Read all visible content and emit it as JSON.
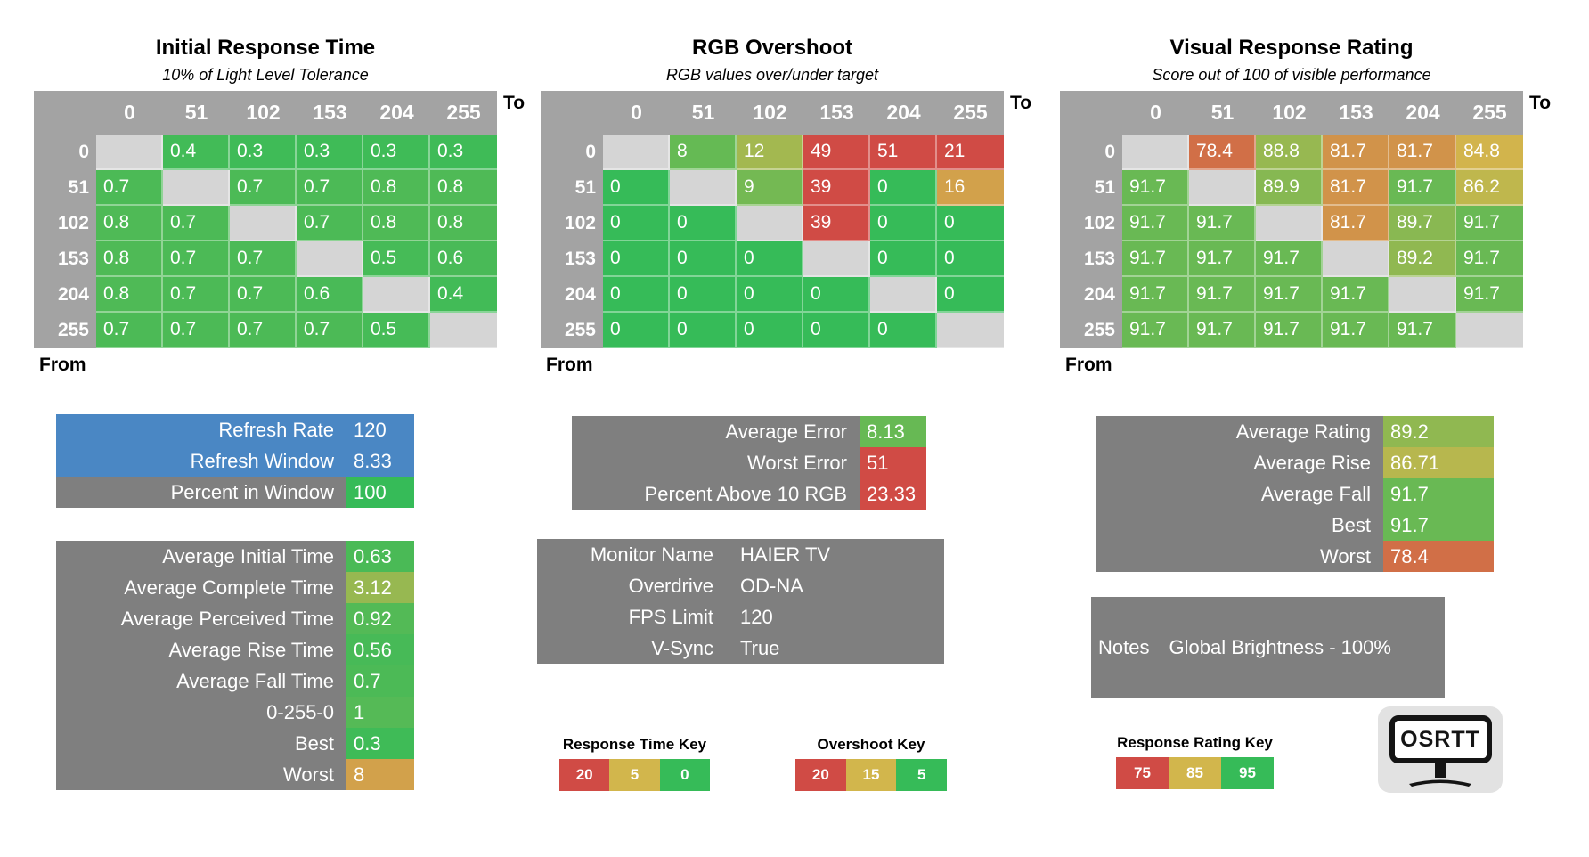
{
  "colors": {
    "green": "#36BB58",
    "gold": "#D2B64C",
    "red": "#D04B45",
    "blue": "#4A87C4",
    "panel_gray": "#7F7F7F",
    "header_gray": "#A3A3A3",
    "diagonal_gray": "#D5D5D5",
    "logo_bg": "#E2E2E2",
    "logo_fg": "#141414"
  },
  "scales": {
    "time": [
      {
        "v": 0,
        "c": "green"
      },
      {
        "v": 5,
        "c": "gold"
      },
      {
        "v": 20,
        "c": "red"
      }
    ],
    "overshoot": [
      {
        "v": 5,
        "c": "green"
      },
      {
        "v": 15,
        "c": "gold"
      },
      {
        "v": 20,
        "c": "red"
      }
    ],
    "rating": [
      {
        "v": 75,
        "c": "red"
      },
      {
        "v": 85,
        "c": "gold"
      },
      {
        "v": 95,
        "c": "green"
      }
    ]
  },
  "tables": [
    {
      "title": "Initial Response Time",
      "subtitle": "10% of Light Level Tolerance",
      "to_label": "To",
      "from_label": "From",
      "scale": "time",
      "columns": [
        "0",
        "51",
        "102",
        "153",
        "204",
        "255"
      ],
      "rows": [
        {
          "label": "0",
          "values": [
            null,
            0.4,
            0.3,
            0.3,
            0.3,
            0.3
          ]
        },
        {
          "label": "51",
          "values": [
            0.7,
            null,
            0.7,
            0.7,
            0.8,
            0.8
          ]
        },
        {
          "label": "102",
          "values": [
            0.8,
            0.7,
            null,
            0.7,
            0.8,
            0.8
          ]
        },
        {
          "label": "153",
          "values": [
            0.8,
            0.7,
            0.7,
            null,
            0.5,
            0.6
          ]
        },
        {
          "label": "204",
          "values": [
            0.8,
            0.7,
            0.7,
            0.6,
            null,
            0.4
          ]
        },
        {
          "label": "255",
          "values": [
            0.7,
            0.7,
            0.7,
            0.7,
            0.5,
            null
          ]
        }
      ]
    },
    {
      "title": "RGB Overshoot",
      "subtitle": "RGB values over/under target",
      "to_label": "To",
      "from_label": "From",
      "scale": "overshoot",
      "columns": [
        "0",
        "51",
        "102",
        "153",
        "204",
        "255"
      ],
      "rows": [
        {
          "label": "0",
          "values": [
            null,
            8,
            12,
            49,
            51,
            21
          ]
        },
        {
          "label": "51",
          "values": [
            0,
            null,
            9,
            39,
            0,
            16
          ]
        },
        {
          "label": "102",
          "values": [
            0,
            0,
            null,
            39,
            0,
            0
          ]
        },
        {
          "label": "153",
          "values": [
            0,
            0,
            0,
            null,
            0,
            0
          ]
        },
        {
          "label": "204",
          "values": [
            0,
            0,
            0,
            0,
            null,
            0
          ]
        },
        {
          "label": "255",
          "values": [
            0,
            0,
            0,
            0,
            0,
            null
          ]
        }
      ]
    },
    {
      "title": "Visual Response Rating",
      "subtitle": "Score out of 100 of visible performance",
      "to_label": "To",
      "from_label": "From",
      "scale": "rating",
      "columns": [
        "0",
        "51",
        "102",
        "153",
        "204",
        "255"
      ],
      "rows": [
        {
          "label": "0",
          "values": [
            null,
            78.4,
            88.8,
            81.7,
            81.7,
            84.8
          ]
        },
        {
          "label": "51",
          "values": [
            91.7,
            null,
            89.9,
            81.7,
            91.7,
            86.2
          ]
        },
        {
          "label": "102",
          "values": [
            91.7,
            91.7,
            null,
            81.7,
            89.7,
            91.7
          ]
        },
        {
          "label": "153",
          "values": [
            91.7,
            91.7,
            91.7,
            null,
            89.2,
            91.7
          ]
        },
        {
          "label": "204",
          "values": [
            91.7,
            91.7,
            91.7,
            91.7,
            null,
            91.7
          ]
        },
        {
          "label": "255",
          "values": [
            91.7,
            91.7,
            91.7,
            91.7,
            91.7,
            null
          ]
        }
      ]
    }
  ],
  "panels": {
    "refresh": {
      "rows": [
        {
          "label": "Refresh Rate",
          "value": "120",
          "row_bg": "blue"
        },
        {
          "label": "Refresh Window",
          "value": "8.33",
          "row_bg": "blue"
        },
        {
          "label": "Percent in Window",
          "value": "100",
          "value_color": "green"
        }
      ]
    },
    "times": {
      "rows": [
        {
          "label": "Average Initial Time",
          "value": "0.63",
          "scale": "time"
        },
        {
          "label": "Average Complete Time",
          "value": "3.12",
          "scale": "time"
        },
        {
          "label": "Average Perceived Time",
          "value": "0.92",
          "scale": "time"
        },
        {
          "label": "Average Rise Time",
          "value": "0.56",
          "scale": "time"
        },
        {
          "label": "Average Fall Time",
          "value": "0.7",
          "scale": "time"
        },
        {
          "label": "0-255-0",
          "value": "1",
          "scale": "time"
        },
        {
          "label": "Best",
          "value": "0.3",
          "scale": "time"
        },
        {
          "label": "Worst",
          "value": "8",
          "scale": "time"
        }
      ]
    },
    "error": {
      "rows": [
        {
          "label": "Average Error",
          "value": "8.13",
          "scale": "overshoot"
        },
        {
          "label": "Worst Error",
          "value": "51",
          "scale": "overshoot"
        },
        {
          "label": "Percent Above 10 RGB",
          "value": "23.33",
          "scale": "overshoot"
        }
      ]
    },
    "monitor": {
      "rows": [
        {
          "label": "Monitor Name",
          "value": "HAIER TV"
        },
        {
          "label": "Overdrive",
          "value": "OD-NA"
        },
        {
          "label": "FPS Limit",
          "value": "120"
        },
        {
          "label": "V-Sync",
          "value": "True"
        }
      ]
    },
    "rating": {
      "rows": [
        {
          "label": "Average Rating",
          "value": "89.2",
          "scale": "rating"
        },
        {
          "label": "Average Rise",
          "value": "86.71",
          "scale": "rating"
        },
        {
          "label": "Average Fall",
          "value": "91.7",
          "scale": "rating"
        },
        {
          "label": "Best",
          "value": "91.7",
          "scale": "rating"
        },
        {
          "label": "Worst",
          "value": "78.4",
          "scale": "rating"
        }
      ]
    },
    "notes": {
      "label": "Notes",
      "value": "Global Brightness - 100%"
    }
  },
  "keys": [
    {
      "title": "Response Time Key",
      "cells": [
        {
          "value": "20",
          "color": "red"
        },
        {
          "value": "5",
          "color": "gold"
        },
        {
          "value": "0",
          "color": "green"
        }
      ]
    },
    {
      "title": "Overshoot Key",
      "cells": [
        {
          "value": "20",
          "color": "red"
        },
        {
          "value": "15",
          "color": "gold"
        },
        {
          "value": "5",
          "color": "green"
        }
      ]
    },
    {
      "title": "Response Rating Key",
      "cells": [
        {
          "value": "75",
          "color": "red"
        },
        {
          "value": "85",
          "color": "gold"
        },
        {
          "value": "95",
          "color": "green"
        }
      ]
    }
  ],
  "logo": {
    "text": "OSRTT"
  }
}
